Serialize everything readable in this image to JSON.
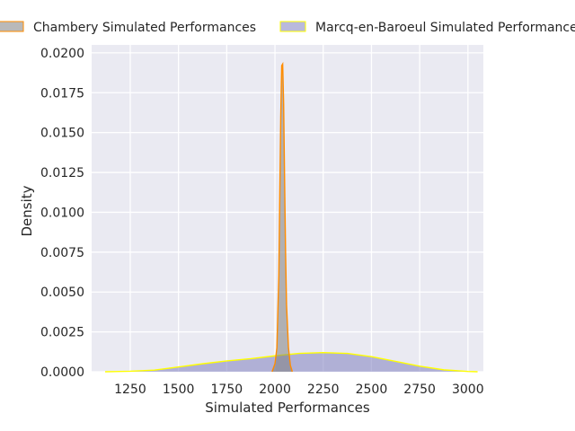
{
  "chart_data": {
    "type": "area",
    "title": "",
    "xlabel": "Simulated Performances",
    "ylabel": "Density",
    "xlim": [
      1050,
      3080
    ],
    "ylim": [
      0,
      0.0205
    ],
    "x_ticks": [
      1250,
      1500,
      1750,
      2000,
      2250,
      2500,
      2750,
      3000
    ],
    "x_tick_labels": [
      "1250",
      "1500",
      "1750",
      "2000",
      "2250",
      "2500",
      "2750",
      "3000"
    ],
    "y_ticks": [
      0,
      0.0025,
      0.005,
      0.0075,
      0.01,
      0.0125,
      0.015,
      0.0175,
      0.02
    ],
    "y_tick_labels": [
      "0.0000",
      "0.0025",
      "0.0050",
      "0.0075",
      "0.0100",
      "0.0125",
      "0.0150",
      "0.0175",
      "0.0200"
    ],
    "grid": true,
    "legend_position": "top",
    "series": [
      {
        "name": "Chambery Simulated Performances",
        "fill_color": "#808080",
        "line_color": "#ff8c00",
        "x": [
          1985,
          2000,
          2010,
          2020,
          2025,
          2030,
          2035,
          2040,
          2045,
          2050,
          2055,
          2060,
          2070,
          2080,
          2090
        ],
        "y": [
          0,
          0.0005,
          0.0015,
          0.006,
          0.011,
          0.016,
          0.0192,
          0.0193,
          0.0168,
          0.012,
          0.0075,
          0.0042,
          0.0015,
          0.0004,
          0
        ]
      },
      {
        "name": "Marcq-en-Baroeul Simulated Performances",
        "fill_color": "#8080c0",
        "line_color": "#ffff00",
        "x": [
          1120,
          1250,
          1375,
          1500,
          1625,
          1750,
          1875,
          2000,
          2125,
          2250,
          2375,
          2500,
          2625,
          2750,
          2875,
          3000,
          3050
        ],
        "y": [
          0,
          3e-05,
          0.0001,
          0.0003,
          0.0005,
          0.00068,
          0.00082,
          0.001,
          0.00115,
          0.0012,
          0.00115,
          0.00095,
          0.00065,
          0.00035,
          0.00012,
          2e-05,
          0
        ]
      }
    ]
  }
}
